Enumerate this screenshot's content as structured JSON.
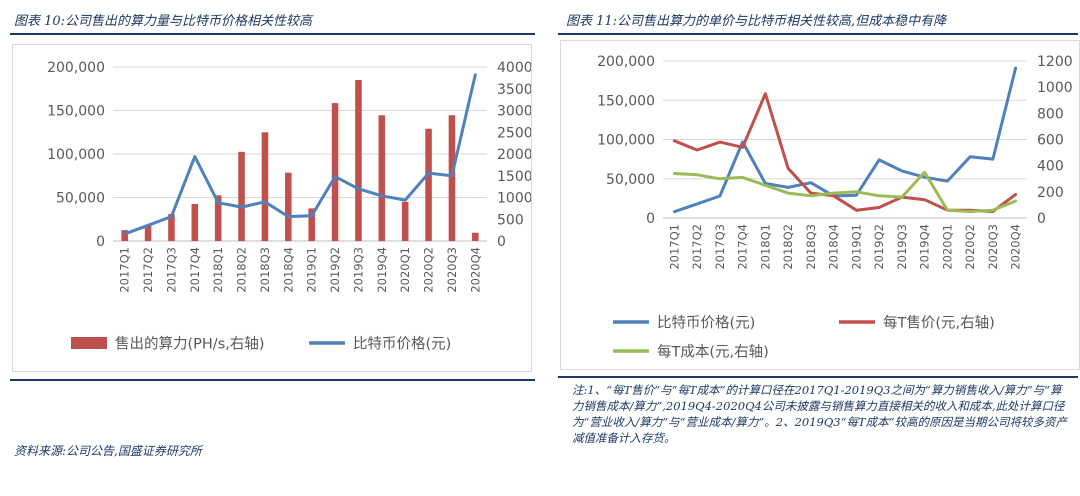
{
  "left": {
    "title": "图表 10:公司售出的算力量与比特币价格相关性较高",
    "source": "资料来源:公司公告,国盛证券研究所"
  },
  "right": {
    "title": "图表 11:公司售出算力的单价与比特币相关性较高,但成本稳中有降",
    "note": "注:1、“每T售价”与“每T成本”的计算口径在2017Q1-2019Q3之间为“算力销售收入/算力”与“算力销售成本/算力”,2019Q4-2020Q4公司未披露与销售算力直接相关的收入和成本,此处计算口径为“营业收入/算力”与“营业成本/算力”。2、2019Q3“每T成本”较高的原因是当期公司将较多资产减值准备计入存货。"
  },
  "chart_data": [
    {
      "type": "bar+line",
      "categories": [
        "2017Q1",
        "2017Q2",
        "2017Q3",
        "2017Q4",
        "2018Q1",
        "2018Q2",
        "2018Q3",
        "2018Q4",
        "2019Q1",
        "2019Q2",
        "2019Q3",
        "2019Q4",
        "2020Q1",
        "2020Q2",
        "2020Q3",
        "2020Q4"
      ],
      "y_left_ticks": [
        "0",
        "50,000",
        "100,000",
        "150,000",
        "200,000"
      ],
      "y_left_range": [
        0,
        200000
      ],
      "y_right_ticks": [
        "0",
        "500",
        "1000",
        "1500",
        "2000",
        "2500",
        "3000",
        "3500",
        "4000"
      ],
      "y_right_range": [
        0,
        4000
      ],
      "series": [
        {
          "name": "售出的算力(PH/s,右轴)",
          "kind": "bar",
          "axis": "right",
          "color": "#c0504d",
          "values": [
            250,
            370,
            620,
            850,
            1050,
            2050,
            2500,
            1570,
            750,
            3170,
            3700,
            2890,
            900,
            2580,
            2890,
            190
          ]
        },
        {
          "name": "比特币价格(元)",
          "kind": "line",
          "axis": "left",
          "color": "#4f81bd",
          "values": [
            8000,
            18000,
            28000,
            97000,
            44000,
            39000,
            45000,
            28000,
            29000,
            74000,
            60000,
            52000,
            47000,
            78000,
            75000,
            191000
          ]
        }
      ],
      "legend": "bottom",
      "grid": true
    },
    {
      "type": "line",
      "categories": [
        "2017Q1",
        "2017Q2",
        "2017Q3",
        "2017Q4",
        "2018Q1",
        "2018Q2",
        "2018Q3",
        "2018Q4",
        "2019Q1",
        "2019Q2",
        "2019Q3",
        "2019Q4",
        "2020Q1",
        "2020Q2",
        "2020Q3",
        "2020Q4"
      ],
      "y_left_ticks": [
        "0",
        "50,000",
        "100,000",
        "150,000",
        "200,000"
      ],
      "y_left_range": [
        0,
        200000
      ],
      "y_right_ticks": [
        "0",
        "200",
        "400",
        "600",
        "800",
        "1000",
        "1200"
      ],
      "y_right_range": [
        0,
        1200
      ],
      "series": [
        {
          "name": "比特币价格(元)",
          "axis": "left",
          "color": "#4f81bd",
          "values": [
            8000,
            18000,
            28000,
            97000,
            44000,
            39000,
            45000,
            28000,
            29000,
            74000,
            60000,
            52000,
            47000,
            78000,
            75000,
            191000
          ]
        },
        {
          "name": "每T售价(元,右轴)",
          "axis": "right",
          "color": "#c0504d",
          "values": [
            590,
            520,
            580,
            540,
            950,
            380,
            190,
            170,
            60,
            80,
            160,
            140,
            60,
            60,
            50,
            180
          ]
        },
        {
          "name": "每T成本(元,右轴)",
          "axis": "right",
          "color": "#9bbb59",
          "values": [
            340,
            330,
            300,
            310,
            250,
            190,
            170,
            190,
            200,
            170,
            160,
            350,
            60,
            50,
            60,
            130
          ]
        }
      ],
      "legend": "bottom",
      "grid": true
    }
  ]
}
